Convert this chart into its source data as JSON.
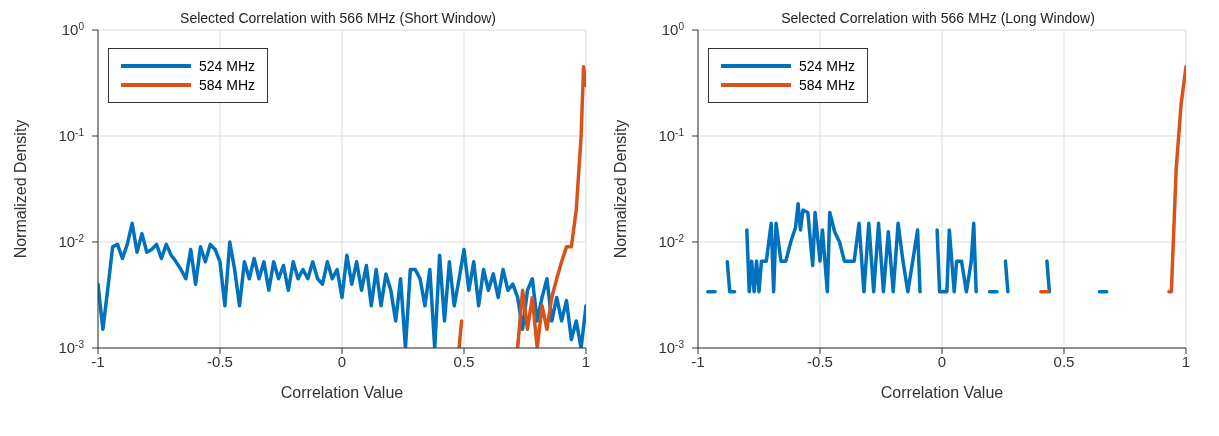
{
  "chart_data": [
    {
      "type": "line",
      "title": "Selected Correlation with 566 MHz (Short Window)",
      "xlabel": "Correlation Value",
      "ylabel": "Normalized Density",
      "log": "y",
      "grid": true,
      "legend": "top left",
      "marker": "none",
      "line_style": "solid",
      "xlim": [
        -1,
        1
      ],
      "xticks": [
        -1,
        -0.5,
        0,
        0.5,
        1
      ],
      "ylim": [
        0.001,
        1
      ],
      "yticks": [
        {
          "value": 0.001,
          "label": "10$^{-3}$"
        },
        {
          "value": 0.01,
          "label": "10$^{-2}$"
        },
        {
          "value": 0.1,
          "label": "10$^{-1}$"
        },
        {
          "value": 1,
          "label": "10$^{0}$"
        }
      ],
      "series": [
        {
          "name": "524 MHz",
          "color": "#0072bd",
          "x": [
            -1,
            -0.98,
            -0.96,
            -0.94,
            -0.92,
            -0.9,
            -0.88,
            -0.86,
            -0.84,
            -0.82,
            -0.8,
            -0.78,
            -0.76,
            -0.74,
            -0.72,
            -0.7,
            -0.68,
            -0.66,
            -0.64,
            -0.62,
            -0.6,
            -0.58,
            -0.56,
            -0.54,
            -0.52,
            -0.5,
            -0.48,
            -0.46,
            -0.44,
            -0.42,
            -0.4,
            -0.38,
            -0.36,
            -0.34,
            -0.32,
            -0.3,
            -0.28,
            -0.26,
            -0.24,
            -0.22,
            -0.2,
            -0.18,
            -0.16,
            -0.14,
            -0.12,
            -0.1,
            -0.08,
            -0.06,
            -0.04,
            -0.02,
            0,
            0.02,
            0.04,
            0.06,
            0.08,
            0.1,
            0.12,
            0.14,
            0.16,
            0.18,
            0.2,
            0.22,
            0.24,
            0.26,
            0.28,
            0.3,
            0.32,
            0.34,
            0.36,
            0.38,
            0.4,
            0.42,
            0.44,
            0.46,
            0.48,
            0.5,
            0.52,
            0.54,
            0.56,
            0.58,
            0.6,
            0.62,
            0.64,
            0.66,
            0.68,
            0.7,
            0.72,
            0.74,
            0.76,
            0.78,
            0.8,
            0.82,
            0.84,
            0.86,
            0.88,
            0.9,
            0.92,
            0.94,
            0.96,
            0.98,
            1
          ],
          "values": [
            0.004,
            0.0015,
            0.0036,
            0.009,
            0.0095,
            0.007,
            0.0095,
            0.015,
            0.008,
            0.012,
            0.008,
            0.0085,
            0.0095,
            0.007,
            0.0095,
            0.0075,
            0.0065,
            0.0055,
            0.0045,
            0.0085,
            0.004,
            0.009,
            0.0065,
            0.0095,
            0.0085,
            0.0065,
            0.0025,
            0.01,
            0.0055,
            0.0025,
            0.0065,
            0.0045,
            0.007,
            0.0045,
            0.0065,
            0.0035,
            0.0065,
            0.0045,
            0.006,
            0.0035,
            0.0065,
            0.0045,
            0.0055,
            0.0045,
            0.0065,
            0.0045,
            0.004,
            0.0065,
            0.0045,
            0.0055,
            0.003,
            0.0075,
            0.004,
            0.0065,
            0.0035,
            0.006,
            0.0025,
            0.0055,
            0.0025,
            0.005,
            0.0035,
            0.0018,
            0.0045,
            0.001,
            0.0055,
            0.0055,
            0.0045,
            0.0025,
            0.0055,
            0.001,
            0.0075,
            0.0018,
            0.0065,
            0.0025,
            0.0045,
            0.0085,
            0.0035,
            0.0065,
            0.0025,
            0.0055,
            0.0035,
            0.005,
            0.003,
            0.0055,
            0.0035,
            0.004,
            0.003,
            0.0015,
            0.0035,
            0.0045,
            0.0018,
            0.003,
            0.0045,
            0.0018,
            0.003,
            0.0018,
            0.0028,
            0.0012,
            0.0018,
            0.001,
            0.0025
          ]
        },
        {
          "name": "584 MHz",
          "color": "#d95319",
          "x": [
            0.48,
            0.49,
            null,
            0.72,
            0.74,
            0.76,
            0.78,
            0.8,
            0.82,
            0.84,
            0.86,
            0.88,
            0.9,
            0.92,
            0.94,
            0.96,
            0.98,
            0.99,
            1
          ],
          "values": [
            0.001,
            0.0018,
            null,
            0.001,
            0.0035,
            0.0015,
            0.003,
            0.001,
            0.0025,
            0.0015,
            0.003,
            0.0045,
            0.0065,
            0.009,
            0.009,
            0.02,
            0.1,
            0.45,
            0.3
          ]
        }
      ]
    },
    {
      "type": "line",
      "title": "Selected Correlation with 566 MHz (Long Window)",
      "xlabel": "Correlation Value",
      "ylabel": "Normalized Density",
      "log": "y",
      "grid": true,
      "legend": "top left",
      "marker": "none",
      "line_style": "solid",
      "xlim": [
        -1,
        1
      ],
      "xticks": [
        -1,
        -0.5,
        0,
        0.5,
        1
      ],
      "ylim": [
        0.001,
        1
      ],
      "yticks": [
        {
          "value": 0.001,
          "label": "10$^{-3}$"
        },
        {
          "value": 0.01,
          "label": "10$^{-2}$"
        },
        {
          "value": 0.1,
          "label": "10$^{-1}$"
        },
        {
          "value": 1,
          "label": "10$^{0}$"
        }
      ],
      "series": [
        {
          "name": "524 MHz",
          "color": "#0072bd",
          "x": [
            -0.96,
            -0.93,
            null,
            -0.88,
            -0.87,
            -0.85,
            null,
            -0.8,
            -0.79,
            -0.78,
            -0.77,
            -0.76,
            -0.75,
            -0.74,
            -0.72,
            -0.7,
            -0.69,
            -0.68,
            -0.66,
            -0.64,
            -0.62,
            -0.6,
            -0.59,
            -0.58,
            -0.57,
            -0.55,
            -0.53,
            -0.52,
            -0.5,
            -0.49,
            -0.47,
            -0.46,
            -0.44,
            -0.42,
            -0.4,
            -0.36,
            -0.34,
            -0.32,
            -0.3,
            -0.28,
            -0.26,
            -0.24,
            -0.22,
            -0.2,
            -0.18,
            -0.16,
            -0.14,
            -0.12,
            -0.1,
            -0.09,
            null,
            -0.02,
            -0.01,
            0.02,
            0.03,
            0.05,
            0.06,
            0.08,
            0.1,
            0.12,
            0.13,
            0.14,
            null,
            0.195,
            0.225,
            null,
            0.26,
            0.27,
            null,
            0.43,
            0.44,
            null,
            0.645,
            0.675
          ],
          "values": [
            0.0034,
            0.0034,
            null,
            0.0065,
            0.0034,
            0.0034,
            null,
            0.013,
            0.0034,
            0.0066,
            0.0034,
            0.0066,
            0.0034,
            0.0066,
            0.0066,
            0.015,
            0.0034,
            0.015,
            0.0066,
            0.0066,
            0.01,
            0.0138,
            0.023,
            0.013,
            0.02,
            0.019,
            0.006,
            0.019,
            0.0066,
            0.013,
            0.0034,
            0.019,
            0.0125,
            0.01,
            0.0066,
            0.0066,
            0.015,
            0.0034,
            0.015,
            0.0034,
            0.015,
            0.0034,
            0.0125,
            0.0034,
            0.015,
            0.0066,
            0.0034,
            0.0066,
            0.013,
            0.0034,
            null,
            0.013,
            0.0034,
            0.0034,
            0.013,
            0.0034,
            0.0066,
            0.0066,
            0.0034,
            0.0066,
            0.015,
            0.0034,
            null,
            0.0034,
            0.0034,
            null,
            0.0066,
            0.0034,
            null,
            0.0066,
            0.0034,
            null,
            0.0034,
            0.0034
          ]
        },
        {
          "name": "584 MHz",
          "color": "#d95319",
          "x": [
            0.405,
            0.435,
            null,
            0.93,
            0.94,
            0.96,
            0.98,
            1
          ],
          "values": [
            0.0034,
            0.0034,
            null,
            0.0034,
            0.0034,
            0.05,
            0.2,
            0.45
          ]
        }
      ]
    }
  ]
}
